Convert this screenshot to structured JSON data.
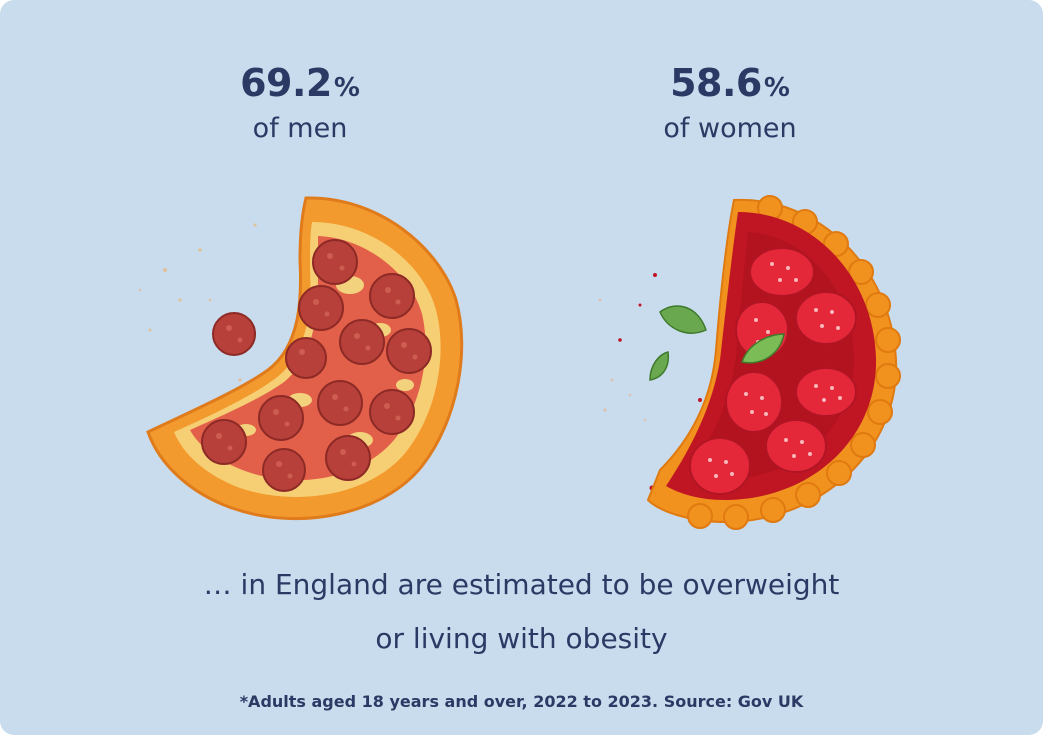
{
  "chart_data": {
    "type": "bar",
    "categories": [
      "of men",
      "of women"
    ],
    "values": [
      69.2,
      58.6
    ],
    "unit": "%",
    "title": "",
    "xlabel": "",
    "ylabel": ""
  },
  "stats": {
    "men": {
      "value": "69.2",
      "unit": "%",
      "label": "of men"
    },
    "women": {
      "value": "58.6",
      "unit": "%",
      "label": "of women"
    }
  },
  "caption": {
    "line1": "… in England are estimated to be overweight",
    "line2": "or living with obesity"
  },
  "footnote": "*Adults aged 18 years and over, 2022 to 2023. Source: Gov UK",
  "icons": [
    "pepperoni-pizza-icon",
    "strawberry-tart-icon"
  ],
  "colors": {
    "background": "#c8dced",
    "text": "#2b3a64",
    "pizza_crust": "#f39a2e",
    "pepperoni": "#c64a3b",
    "tart_filling": "#c01624",
    "tart_crust": "#f1921f"
  }
}
